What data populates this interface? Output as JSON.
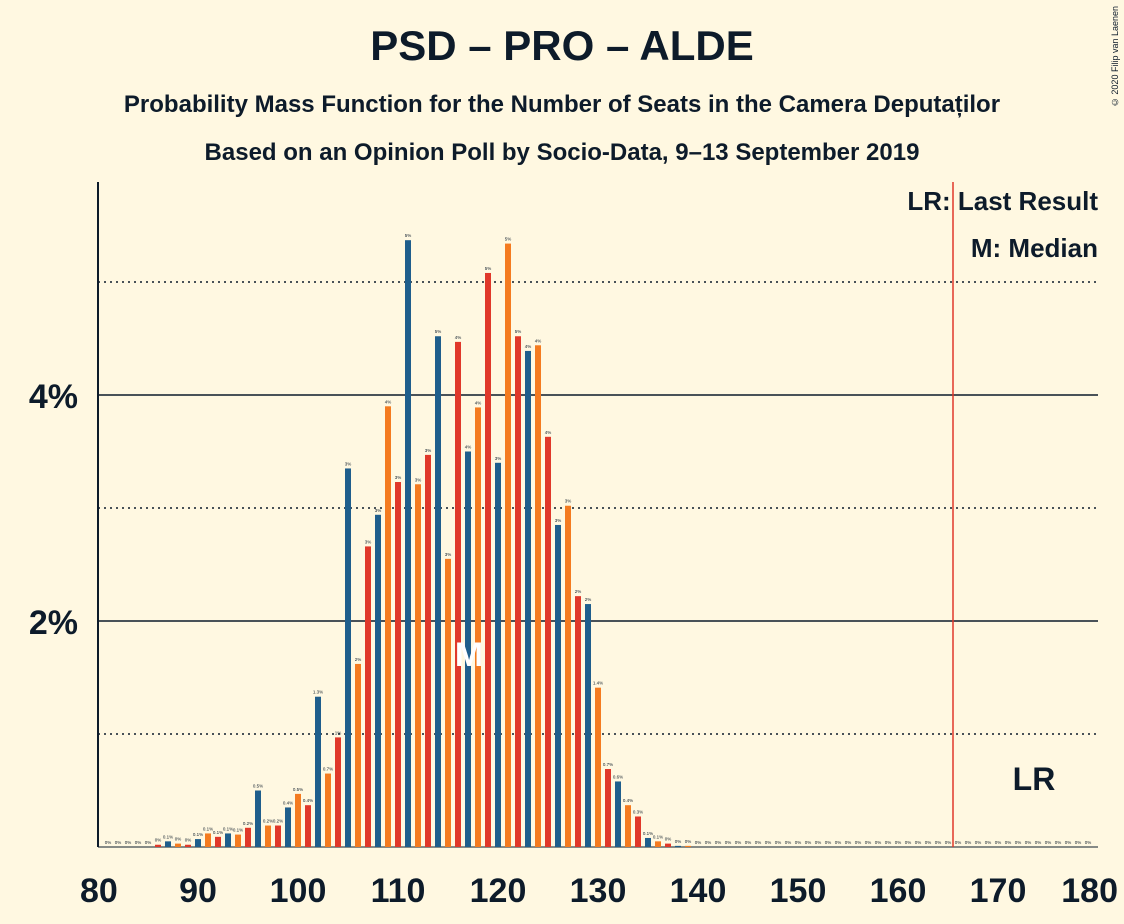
{
  "title": "PSD – PRO – ALDE",
  "subtitle": "Probability Mass Function for the Number of Seats in the Camera Deputaților",
  "subtitle2": "Based on an Opinion Poll by Socio-Data, 9–13 September 2019",
  "copyright": "© 2020 Filip van Laenen",
  "colors": {
    "background": "#FFF8E1",
    "blue": "#1F5E8C",
    "orange": "#F47B20",
    "red": "#E0382A",
    "text": "#0D1B2A",
    "last_result_line": "#E0382A"
  },
  "chart_data": {
    "type": "bar",
    "title": "PSD – PRO – ALDE",
    "xlabel": "",
    "ylabel": "",
    "xlim": [
      80,
      180
    ],
    "ylim": [
      0,
      5.9
    ],
    "x_ticks": [
      80,
      90,
      100,
      110,
      120,
      130,
      140,
      150,
      160,
      170,
      180
    ],
    "x_tick_labels": [
      "80",
      "90",
      "100",
      "110",
      "120",
      "130",
      "140",
      "150",
      "160",
      "170",
      "180"
    ],
    "y_major_ticks": [
      2,
      4
    ],
    "y_tick_labels": [
      "2%",
      "4%"
    ],
    "y_minor_gridlines": [
      1,
      3,
      5
    ],
    "color_cycle": [
      "blue",
      "orange",
      "red"
    ],
    "seats": [
      81,
      82,
      83,
      84,
      85,
      86,
      87,
      88,
      89,
      90,
      91,
      92,
      93,
      94,
      95,
      96,
      97,
      98,
      99,
      100,
      101,
      102,
      103,
      104,
      105,
      106,
      107,
      108,
      109,
      110,
      111,
      112,
      113,
      114,
      115,
      116,
      117,
      118,
      119,
      120,
      121,
      122,
      123,
      124,
      125,
      126,
      127,
      128,
      129,
      130,
      131,
      132,
      133,
      134,
      135,
      136,
      137,
      138,
      139,
      140,
      141,
      142,
      143,
      144,
      145,
      146,
      147,
      148,
      149,
      150,
      151,
      152,
      153,
      154,
      155,
      156,
      157,
      158,
      159,
      160,
      161,
      162,
      163,
      164,
      165,
      166,
      167,
      168,
      169,
      170,
      171,
      172,
      173,
      174,
      175,
      176,
      177,
      178,
      179
    ],
    "values": [
      0,
      0,
      0,
      0,
      0,
      0,
      0.1,
      0,
      0,
      0.1,
      0.1,
      0.1,
      0.1,
      0.1,
      0.2,
      0.5,
      0.2,
      0.2,
      0.4,
      0.5,
      0.4,
      1.3,
      0.7,
      1,
      3,
      2,
      3,
      3,
      4,
      3,
      5,
      3,
      3,
      5,
      3,
      4,
      4,
      4,
      5,
      3,
      5,
      5,
      4,
      4,
      4,
      3,
      3,
      2,
      2,
      1.4,
      0.7,
      0.6,
      0.4,
      0.3,
      0.1,
      0.1,
      0,
      0,
      0,
      0,
      0,
      0,
      0,
      0,
      0,
      0,
      0,
      0,
      0,
      0,
      0,
      0,
      0,
      0,
      0,
      0,
      0,
      0,
      0,
      0,
      0,
      0,
      0,
      0,
      0,
      0,
      0,
      0,
      0,
      0,
      0,
      0,
      0,
      0,
      0,
      0,
      0,
      0,
      0
    ],
    "label_texts": [
      "0%",
      "0%",
      "0%",
      "0%",
      "0%",
      "0%",
      "0.1%",
      "0%",
      "0%",
      "0.1%",
      "0.1%",
      "0.1%",
      "0.1%",
      "0.1%",
      "0.2%",
      "0.5%",
      "0.2%",
      "0.2%",
      "0.4%",
      "0.5%",
      "0.4%",
      "1.3%",
      "0.7%",
      "1%",
      "3%",
      "2%",
      "3%",
      "3%",
      "4%",
      "3%",
      "5%",
      "3%",
      "3%",
      "5%",
      "3%",
      "4%",
      "4%",
      "4%",
      "5%",
      "3%",
      "5%",
      "5%",
      "4%",
      "4%",
      "4%",
      "3%",
      "3%",
      "2%",
      "2%",
      "1.4%",
      "0.7%",
      "0.6%",
      "0.4%",
      "0.3%",
      "0.1%",
      "0.1%",
      "0%",
      "0%",
      "0%",
      "0%",
      "0%",
      "0%",
      "0%",
      "0%",
      "0%",
      "0%",
      "0%",
      "0%",
      "0%",
      "0%",
      "0%",
      "0%",
      "0%",
      "0%",
      "0%",
      "0%",
      "0%",
      "0%",
      "0%",
      "0%",
      "0%",
      "0%",
      "0%",
      "0%",
      "0%",
      "0%",
      "0%",
      "0%",
      "0%",
      "0%",
      "0%",
      "0%",
      "0%",
      "0%",
      "0%",
      "0%",
      "0%",
      "0%",
      "0%"
    ],
    "bar_heights_pct": [
      0,
      0,
      0,
      0,
      0,
      0.02,
      0.05,
      0.03,
      0.02,
      0.07,
      0.12,
      0.09,
      0.12,
      0.11,
      0.17,
      0.5,
      0.19,
      0.19,
      0.35,
      0.47,
      0.37,
      1.33,
      0.65,
      0.97,
      3.35,
      1.62,
      2.66,
      2.94,
      3.9,
      3.23,
      5.37,
      3.21,
      3.47,
      4.52,
      2.55,
      4.47,
      3.5,
      3.89,
      5.08,
      3.4,
      5.34,
      4.52,
      4.39,
      4.44,
      3.63,
      2.85,
      3.02,
      2.22,
      2.15,
      1.41,
      0.69,
      0.58,
      0.37,
      0.27,
      0.08,
      0.05,
      0.03,
      0.01,
      0.01,
      0,
      0,
      0,
      0,
      0,
      0,
      0,
      0,
      0,
      0,
      0,
      0,
      0,
      0,
      0,
      0,
      0,
      0,
      0,
      0,
      0,
      0,
      0,
      0,
      0,
      0,
      0,
      0,
      0,
      0,
      0,
      0,
      0,
      0,
      0,
      0,
      0,
      0,
      0,
      0
    ],
    "last_result": 166,
    "median": 117,
    "median_marker": "M",
    "last_result_label": "LR",
    "legend": [
      "LR: Last Result",
      "M: Median"
    ],
    "legend_position": "top-right",
    "grid": true
  }
}
